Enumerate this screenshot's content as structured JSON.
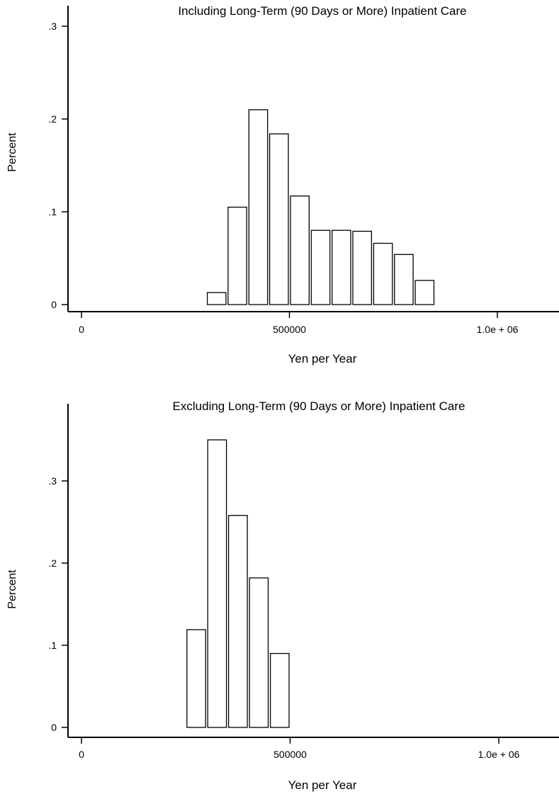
{
  "chart_data": [
    {
      "type": "bar",
      "title": "Including Long-Term (90 Days or More) Inpatient Care",
      "xlabel": "Yen per Year",
      "ylabel": "Percent",
      "xlim": [
        0,
        1150000
      ],
      "ylim": [
        0,
        0.3
      ],
      "xticks": [
        {
          "value": 0,
          "label": "0"
        },
        {
          "value": 500000,
          "label": "500000"
        },
        {
          "value": 1000000,
          "label": "1.0e + 06"
        }
      ],
      "yticks": [
        {
          "value": 0,
          "label": "0"
        },
        {
          "value": 0.1,
          "label": ".1"
        },
        {
          "value": 0.2,
          "label": ".2"
        },
        {
          "value": 0.3,
          "label": ".3"
        }
      ],
      "bin_width": 50000,
      "bins": [
        {
          "start": 300000,
          "value": 0.013
        },
        {
          "start": 350000,
          "value": 0.105
        },
        {
          "start": 400000,
          "value": 0.21
        },
        {
          "start": 450000,
          "value": 0.184
        },
        {
          "start": 500000,
          "value": 0.117
        },
        {
          "start": 550000,
          "value": 0.08
        },
        {
          "start": 600000,
          "value": 0.08
        },
        {
          "start": 650000,
          "value": 0.079
        },
        {
          "start": 700000,
          "value": 0.066
        },
        {
          "start": 750000,
          "value": 0.054
        },
        {
          "start": 800000,
          "value": 0.026
        }
      ],
      "grid": false
    },
    {
      "type": "bar",
      "title": "Excluding Long-Term (90 Days or More) Inpatient Care",
      "xlabel": "Yen per Year",
      "ylabel": "Percent",
      "xlim": [
        0,
        1150000
      ],
      "ylim": [
        0,
        0.37
      ],
      "xticks": [
        {
          "value": 0,
          "label": "0"
        },
        {
          "value": 500000,
          "label": "500000"
        },
        {
          "value": 1000000,
          "label": "1.0e + 06"
        }
      ],
      "yticks": [
        {
          "value": 0,
          "label": "0"
        },
        {
          "value": 0.1,
          "label": ".1"
        },
        {
          "value": 0.2,
          "label": ".2"
        },
        {
          "value": 0.3,
          "label": ".3"
        }
      ],
      "bin_width": 50000,
      "bins": [
        {
          "start": 250000,
          "value": 0.119
        },
        {
          "start": 300000,
          "value": 0.35
        },
        {
          "start": 350000,
          "value": 0.258
        },
        {
          "start": 400000,
          "value": 0.182
        },
        {
          "start": 450000,
          "value": 0.09
        }
      ],
      "grid": false
    }
  ]
}
